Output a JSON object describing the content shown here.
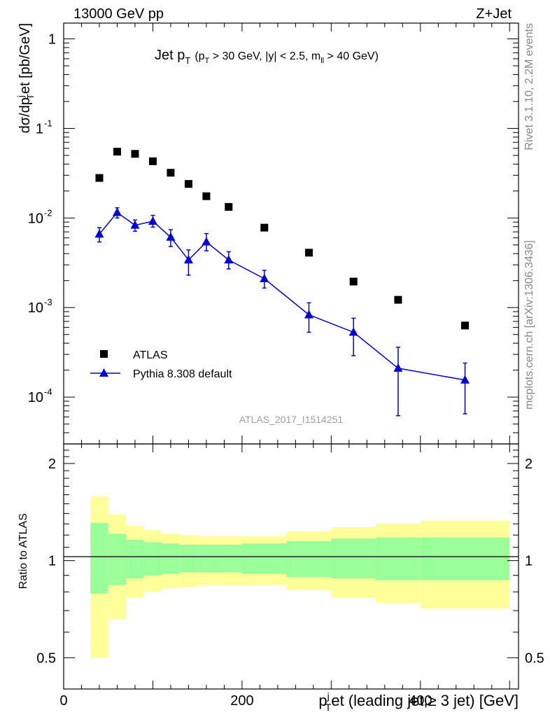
{
  "header": {
    "left": "13000 GeV pp",
    "right": "Z+Jet"
  },
  "plot_title": {
    "main": "Jet p",
    "main_sub": "T",
    "cuts": "(p",
    "cuts_sub1": "T",
    "cuts_mid": " > 30 GeV, |y| < 2.5, m",
    "cuts_sub2": "ll",
    "cuts_end": " > 40 GeV)"
  },
  "side_labels": {
    "rivet": "Rivet 3.1.10,  2.2M events",
    "mcplots": "mcplots.cern.ch [arXiv:1306.3436]"
  },
  "watermark": "ATLAS_2017_I1514251",
  "axes": {
    "ylabel_main": "dσ/dp",
    "ylabel_main_sup": "j",
    "ylabel_main_sub": "T",
    "ylabel_main_end": "et [pb/GeV]",
    "ylabel_ratio": "Ratio to ATLAS",
    "xlabel": "p",
    "xlabel_sup": "j",
    "xlabel_sub": "T",
    "xlabel_end": "et (leading jet,≥ 3 jet) [GeV]",
    "x_ticks": [
      "0",
      "200",
      "400"
    ],
    "y_main_ticks": [
      "10",
      "10",
      "10",
      "1"
    ],
    "y_main_tick_exps": [
      "-4",
      "-3",
      "-2",
      "-1",
      ""
    ],
    "y_ratio_ticks": [
      "0.5",
      "1",
      "2"
    ]
  },
  "chart_data": {
    "type": "scatter",
    "title": "Jet pT (pT > 30 GeV, |y| < 2.5, mll > 40 GeV)",
    "xlabel": "pTjet (leading jet,≥ 3 jet) [GeV]",
    "ylabel": "dσ/dpTjet [pb/GeV]",
    "xlim": [
      0,
      510
    ],
    "ylim": [
      3e-05,
      1.5
    ],
    "yscale": "log",
    "legend_position": "middle-left",
    "series": [
      {
        "name": "ATLAS",
        "marker": "square",
        "color": "#000000",
        "x": [
          40,
          60,
          80,
          100,
          120,
          140,
          160,
          185,
          225,
          275,
          325,
          375,
          450
        ],
        "y": [
          0.028,
          0.055,
          0.052,
          0.043,
          0.032,
          0.024,
          0.0175,
          0.0133,
          0.0078,
          0.0041,
          0.00195,
          0.00122,
          0.00063
        ]
      },
      {
        "name": "Pythia 8.308 default",
        "marker": "triangle",
        "color": "#0000dd",
        "x": [
          40,
          60,
          80,
          100,
          120,
          140,
          160,
          185,
          225,
          275,
          325,
          375,
          450
        ],
        "y": [
          0.0066,
          0.0115,
          0.0083,
          0.0092,
          0.0061,
          0.0034,
          0.0054,
          0.0034,
          0.0021,
          0.00083,
          0.00053,
          0.00021,
          0.000155
        ],
        "err_low": [
          0.0012,
          0.0015,
          0.0012,
          0.0013,
          0.0013,
          0.0011,
          0.0011,
          0.0007,
          0.00045,
          0.0003,
          0.00024,
          0.000148,
          9e-05
        ],
        "err_high": [
          0.0012,
          0.0015,
          0.0012,
          0.0015,
          0.0013,
          0.001,
          0.0013,
          0.0008,
          0.0005,
          0.0003,
          0.00023,
          0.00015,
          8.5e-05
        ]
      }
    ],
    "ratio": {
      "ylabel": "Ratio to ATLAS",
      "ylim": [
        0.4,
        2.3
      ],
      "bin_edges": [
        30,
        50,
        70,
        90,
        110,
        130,
        150,
        170,
        200,
        250,
        300,
        350,
        400,
        500
      ],
      "stat_band": [
        [
          0.79,
          1.31
        ],
        [
          0.84,
          1.21
        ],
        [
          0.88,
          1.16
        ],
        [
          0.9,
          1.14
        ],
        [
          0.91,
          1.13
        ],
        [
          0.92,
          1.12
        ],
        [
          0.92,
          1.12
        ],
        [
          0.92,
          1.12
        ],
        [
          0.91,
          1.13
        ],
        [
          0.89,
          1.15
        ],
        [
          0.88,
          1.17
        ],
        [
          0.87,
          1.18
        ],
        [
          0.87,
          1.18
        ]
      ],
      "syst_band": [
        [
          0.5,
          1.58
        ],
        [
          0.66,
          1.39
        ],
        [
          0.77,
          1.28
        ],
        [
          0.8,
          1.24
        ],
        [
          0.82,
          1.21
        ],
        [
          0.83,
          1.2
        ],
        [
          0.84,
          1.19
        ],
        [
          0.84,
          1.19
        ],
        [
          0.84,
          1.19
        ],
        [
          0.81,
          1.23
        ],
        [
          0.77,
          1.27
        ],
        [
          0.74,
          1.3
        ],
        [
          0.71,
          1.33
        ]
      ],
      "stat_color": "#99ff99",
      "syst_color": "#ffff99"
    }
  }
}
